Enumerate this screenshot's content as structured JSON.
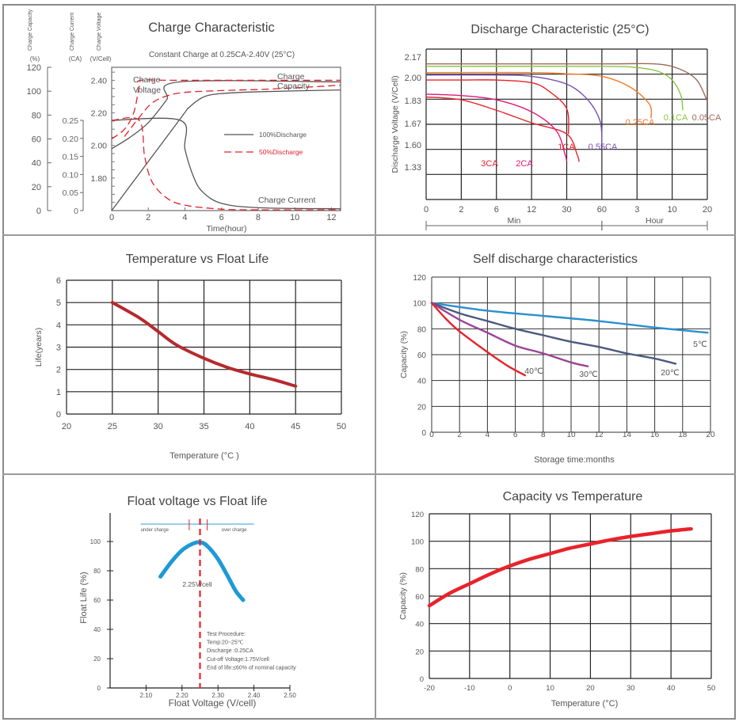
{
  "chart_data": [
    {
      "id": "charge",
      "type": "line",
      "title": "Charge Characteristic",
      "subtitle": "Constant Charge at 0.25CA-2.40V  (25°C)",
      "xlabel": "Time(hour)",
      "xlim": [
        0,
        12.5
      ],
      "xticks": [
        0,
        2,
        4,
        6,
        8,
        10,
        12
      ],
      "axes": [
        {
          "name": "Charge Capacity",
          "unit": "(%)",
          "lim": [
            0,
            120
          ],
          "ticks": [
            0,
            20,
            40,
            60,
            80,
            100,
            120
          ]
        },
        {
          "name": "Charge Current",
          "unit": "(CA)",
          "lim": [
            0,
            0.25
          ],
          "ticks": [
            "0",
            "0.05",
            "0.10",
            "0.15",
            "0.20",
            "0.25"
          ]
        },
        {
          "name": "Charge Voltage",
          "unit": "(V/Cell)",
          "lim": [
            1.6,
            2.48
          ],
          "ticks": [
            "1.80",
            "2.00",
            "2.20",
            "2.40"
          ]
        }
      ],
      "annotations": [
        "Charge Voltage",
        "Charge Capacity",
        "Charge Current"
      ],
      "legend": {
        "placement": "center-right",
        "items": [
          {
            "name": "100%Discharge",
            "color": "#555555",
            "style": "solid"
          },
          {
            "name": "50%Discharge",
            "color": "#e0202a",
            "style": "dashed"
          }
        ]
      },
      "series": [
        {
          "name": "100% Discharge - Voltage",
          "axis": "V",
          "style": "solid",
          "color": "#555555",
          "points": [
            [
              0,
              1.98
            ],
            [
              1,
              2.05
            ],
            [
              2,
              2.14
            ],
            [
              3,
              2.28
            ],
            [
              3.7,
              2.39
            ],
            [
              12.5,
              2.39
            ]
          ]
        },
        {
          "name": "100% Discharge - Capacity",
          "axis": "%",
          "style": "solid",
          "color": "#555555",
          "points": [
            [
              0,
              0
            ],
            [
              3.75,
              77
            ],
            [
              4.2,
              86
            ],
            [
              5,
              95
            ],
            [
              6,
              98
            ],
            [
              8,
              99.5
            ],
            [
              12.5,
              101
            ]
          ]
        },
        {
          "name": "100% Discharge - Current",
          "axis": "CA",
          "style": "solid",
          "color": "#555555",
          "points": [
            [
              0,
              0.25
            ],
            [
              3.75,
              0.25
            ],
            [
              4,
              0.17
            ],
            [
              4.5,
              0.09
            ],
            [
              5,
              0.05
            ],
            [
              6,
              0.02
            ],
            [
              8,
              0.008
            ],
            [
              12.5,
              0.005
            ]
          ]
        },
        {
          "name": "50% Discharge - Voltage",
          "axis": "V",
          "style": "dashed",
          "color": "#e0202a",
          "points": [
            [
              0,
              2.04
            ],
            [
              0.7,
              2.1
            ],
            [
              1.2,
              2.2
            ],
            [
              1.5,
              2.36
            ],
            [
              1.6,
              2.4
            ],
            [
              3.7,
              2.4
            ],
            [
              12.5,
              2.4
            ]
          ]
        },
        {
          "name": "50% Discharge - Capacity",
          "axis": "%",
          "style": "dashed",
          "color": "#e0202a",
          "points": [
            [
              0.7,
              62
            ],
            [
              1.5,
              78
            ],
            [
              2.2,
              90
            ],
            [
              3,
              96
            ],
            [
              4,
              99
            ],
            [
              6,
              100.5
            ],
            [
              9,
              102
            ],
            [
              12.5,
              105
            ]
          ]
        },
        {
          "name": "50% Discharge - Current",
          "axis": "CA",
          "style": "dashed",
          "color": "#e0202a",
          "points": [
            [
              0,
              0.25
            ],
            [
              1.5,
              0.25
            ],
            [
              1.8,
              0.15
            ],
            [
              2.2,
              0.08
            ],
            [
              3,
              0.035
            ],
            [
              4,
              0.015
            ],
            [
              6,
              0.004
            ],
            [
              8,
              0.002
            ],
            [
              12.5,
              0.002
            ]
          ]
        }
      ]
    },
    {
      "id": "discharge",
      "type": "line",
      "title": "Discharge Characteristic (25°C)",
      "ylabel": "Discharge Voltage (V/Cell)",
      "yticks": [
        "2.17",
        "2.00",
        "1.83",
        "1.67",
        "1.60",
        "1.33"
      ],
      "xticks": [
        "0",
        "2",
        "6",
        "12",
        "30",
        "60",
        "3",
        "10",
        "20"
      ],
      "x_groups": [
        {
          "label": "Min",
          "from": 0,
          "to": 5
        },
        {
          "label": "Hour",
          "from": 5,
          "to": 8
        }
      ],
      "note": "x positions are grid column indices 0-8 (log-like time axis)",
      "series": [
        {
          "name": "3CA",
          "color": "#e8232b",
          "points": [
            [
              0,
              1.89
            ],
            [
              1,
              1.87
            ],
            [
              2,
              1.8
            ],
            [
              3,
              1.72
            ],
            [
              4,
              1.66
            ],
            [
              4.3,
              1.59
            ],
            [
              4.35,
              1.52
            ]
          ]
        },
        {
          "name": "2CA",
          "color": "#e0197a",
          "points": [
            [
              0,
              1.91
            ],
            [
              1,
              1.9
            ],
            [
              2,
              1.87
            ],
            [
              3,
              1.79
            ],
            [
              3.7,
              1.67
            ],
            [
              3.95,
              1.6
            ],
            [
              4.0,
              1.52
            ]
          ]
        },
        {
          "name": "1CA",
          "color": "#e8232b",
          "points": [
            [
              0,
              2.01
            ],
            [
              1,
              2.01
            ],
            [
              2,
              2.01
            ],
            [
              3,
              1.99
            ],
            [
              3.5,
              1.93
            ],
            [
              4.0,
              1.81
            ],
            [
              4.05,
              1.66
            ]
          ]
        },
        {
          "name": "0.55CA",
          "color": "#7b4fb0",
          "points": [
            [
              0,
              2.05
            ],
            [
              2,
              2.05
            ],
            [
              3,
              2.04
            ],
            [
              4,
              1.98
            ],
            [
              4.6,
              1.87
            ],
            [
              4.95,
              1.73
            ],
            [
              5.0,
              1.63
            ]
          ]
        },
        {
          "name": "0.25CA",
          "color": "#f07a2a",
          "points": [
            [
              0,
              2.07
            ],
            [
              3,
              2.07
            ],
            [
              4,
              2.06
            ],
            [
              5,
              2.04
            ],
            [
              5.8,
              1.96
            ],
            [
              6.35,
              1.84
            ],
            [
              6.4,
              1.75
            ]
          ]
        },
        {
          "name": "0.1CA",
          "color": "#8ac43f",
          "points": [
            [
              0,
              2.12
            ],
            [
              5,
              2.12
            ],
            [
              6,
              2.11
            ],
            [
              6.6,
              2.08
            ],
            [
              7,
              2.01
            ],
            [
              7.25,
              1.9
            ],
            [
              7.3,
              1.8
            ]
          ]
        },
        {
          "name": "0.05CA",
          "color": "#a0685a",
          "points": [
            [
              0,
              2.14
            ],
            [
              5,
              2.14
            ],
            [
              6.5,
              2.14
            ],
            [
              7.2,
              2.1
            ],
            [
              7.7,
              2.01
            ],
            [
              8.0,
              1.86
            ]
          ]
        }
      ]
    },
    {
      "id": "temp_life",
      "type": "line",
      "title": "Temperature vs Float Life",
      "xlabel": "Temperature (°C )",
      "ylabel": "Life(years)",
      "xlim": [
        20,
        50
      ],
      "ylim": [
        0,
        6
      ],
      "xticks": [
        20,
        25,
        30,
        35,
        40,
        45,
        50
      ],
      "yticks": [
        0,
        1,
        2,
        3,
        4,
        5,
        6
      ],
      "grid": true,
      "series": [
        {
          "name": "Life",
          "color": "#b52a2e",
          "points": [
            [
              25,
              5.0
            ],
            [
              28,
              4.3
            ],
            [
              30,
              3.7
            ],
            [
              32,
              3.1
            ],
            [
              35,
              2.5
            ],
            [
              37.5,
              2.1
            ],
            [
              40,
              1.8
            ],
            [
              42.5,
              1.55
            ],
            [
              45,
              1.25
            ]
          ]
        }
      ]
    },
    {
      "id": "self_discharge",
      "type": "line",
      "title": "Self discharge characteristics",
      "xlabel": "Storage time:months",
      "ylabel": "Capacity (%)",
      "xlim": [
        0,
        20
      ],
      "ylim": [
        0,
        120
      ],
      "xticks": [
        0,
        2,
        4,
        6,
        8,
        10,
        12,
        14,
        16,
        18,
        20
      ],
      "yticks": [
        0,
        20,
        40,
        60,
        80,
        100,
        120
      ],
      "grid": true,
      "series": [
        {
          "name": "5℃",
          "color": "#2b8fd0",
          "points": [
            [
              0,
              100
            ],
            [
              4,
              94
            ],
            [
              8,
              90
            ],
            [
              12,
              86
            ],
            [
              16,
              81
            ],
            [
              19.8,
              77
            ]
          ]
        },
        {
          "name": "20℃",
          "color": "#4c5a7e",
          "points": [
            [
              0,
              100
            ],
            [
              2,
              92
            ],
            [
              4,
              86
            ],
            [
              6,
              80
            ],
            [
              8,
              75
            ],
            [
              10,
              70
            ],
            [
              12,
              66
            ],
            [
              14,
              61
            ],
            [
              16,
              57
            ],
            [
              17.5,
              53
            ]
          ]
        },
        {
          "name": "30℃",
          "color": "#9a4496",
          "points": [
            [
              0,
              100
            ],
            [
              2,
              87
            ],
            [
              4,
              77
            ],
            [
              6,
              67
            ],
            [
              8,
              61
            ],
            [
              10,
              54
            ],
            [
              11.2,
              51
            ]
          ]
        },
        {
          "name": "40℃",
          "color": "#e8232b",
          "points": [
            [
              0,
              100
            ],
            [
              1,
              88
            ],
            [
              2,
              78
            ],
            [
              4,
              62
            ],
            [
              5.5,
              51
            ],
            [
              6.7,
              44
            ]
          ]
        }
      ]
    },
    {
      "id": "float_voltage",
      "type": "line",
      "title": "Float voltage vs Float life",
      "xlabel": "Float Voltage (V/cell)",
      "ylabel": "Float Life (%)",
      "xlim": [
        2.0,
        2.5
      ],
      "ylim": [
        0,
        100
      ],
      "xticks": [
        "2.10",
        "2.20",
        "2.30",
        "2.40",
        "2.50"
      ],
      "yticks": [
        0,
        20,
        40,
        60,
        80,
        100
      ],
      "marker_line": {
        "x": 2.25,
        "label": "2.25V/cell",
        "color": "#e8232b"
      },
      "band": {
        "under": "under charge",
        "over": "over charge",
        "low": 2.22,
        "high": 2.27,
        "color": "#2b9fd8"
      },
      "procedure": [
        "Test Procedure:",
        "Temp:20~25℃",
        "Discharge :0.25CA",
        "Cut-off Voltage:1.75V/cell",
        "End of life:≤60% of nominal capacity"
      ],
      "series": [
        {
          "name": "Float life",
          "color": "#1d9ad6",
          "points": [
            [
              2.14,
              76
            ],
            [
              2.17,
              86
            ],
            [
              2.2,
              94
            ],
            [
              2.23,
              98.5
            ],
            [
              2.25,
              99.5
            ],
            [
              2.27,
              97
            ],
            [
              2.3,
              88
            ],
            [
              2.33,
              75
            ],
            [
              2.35,
              66
            ],
            [
              2.37,
              60
            ]
          ]
        }
      ]
    },
    {
      "id": "cap_temp",
      "type": "line",
      "title": "Capacity vs Temperature",
      "xlabel": "Temperature (°C)",
      "ylabel": "Capacity (%)",
      "xlim": [
        -20,
        50
      ],
      "ylim": [
        0,
        120
      ],
      "xticks": [
        -20,
        -10,
        0,
        10,
        20,
        30,
        40,
        50
      ],
      "yticks": [
        0,
        20,
        40,
        60,
        80,
        100,
        120
      ],
      "grid": true,
      "series": [
        {
          "name": "Capacity",
          "color": "#e8232b",
          "points": [
            [
              -20,
              53
            ],
            [
              -15,
              62
            ],
            [
              -10,
              69
            ],
            [
              -5,
              76
            ],
            [
              0,
              82
            ],
            [
              5,
              87
            ],
            [
              10,
              91
            ],
            [
              15,
              95
            ],
            [
              20,
              98
            ],
            [
              25,
              101
            ],
            [
              30,
              103.5
            ],
            [
              35,
              105.5
            ],
            [
              40,
              107.5
            ],
            [
              45,
              109
            ]
          ]
        }
      ]
    }
  ]
}
